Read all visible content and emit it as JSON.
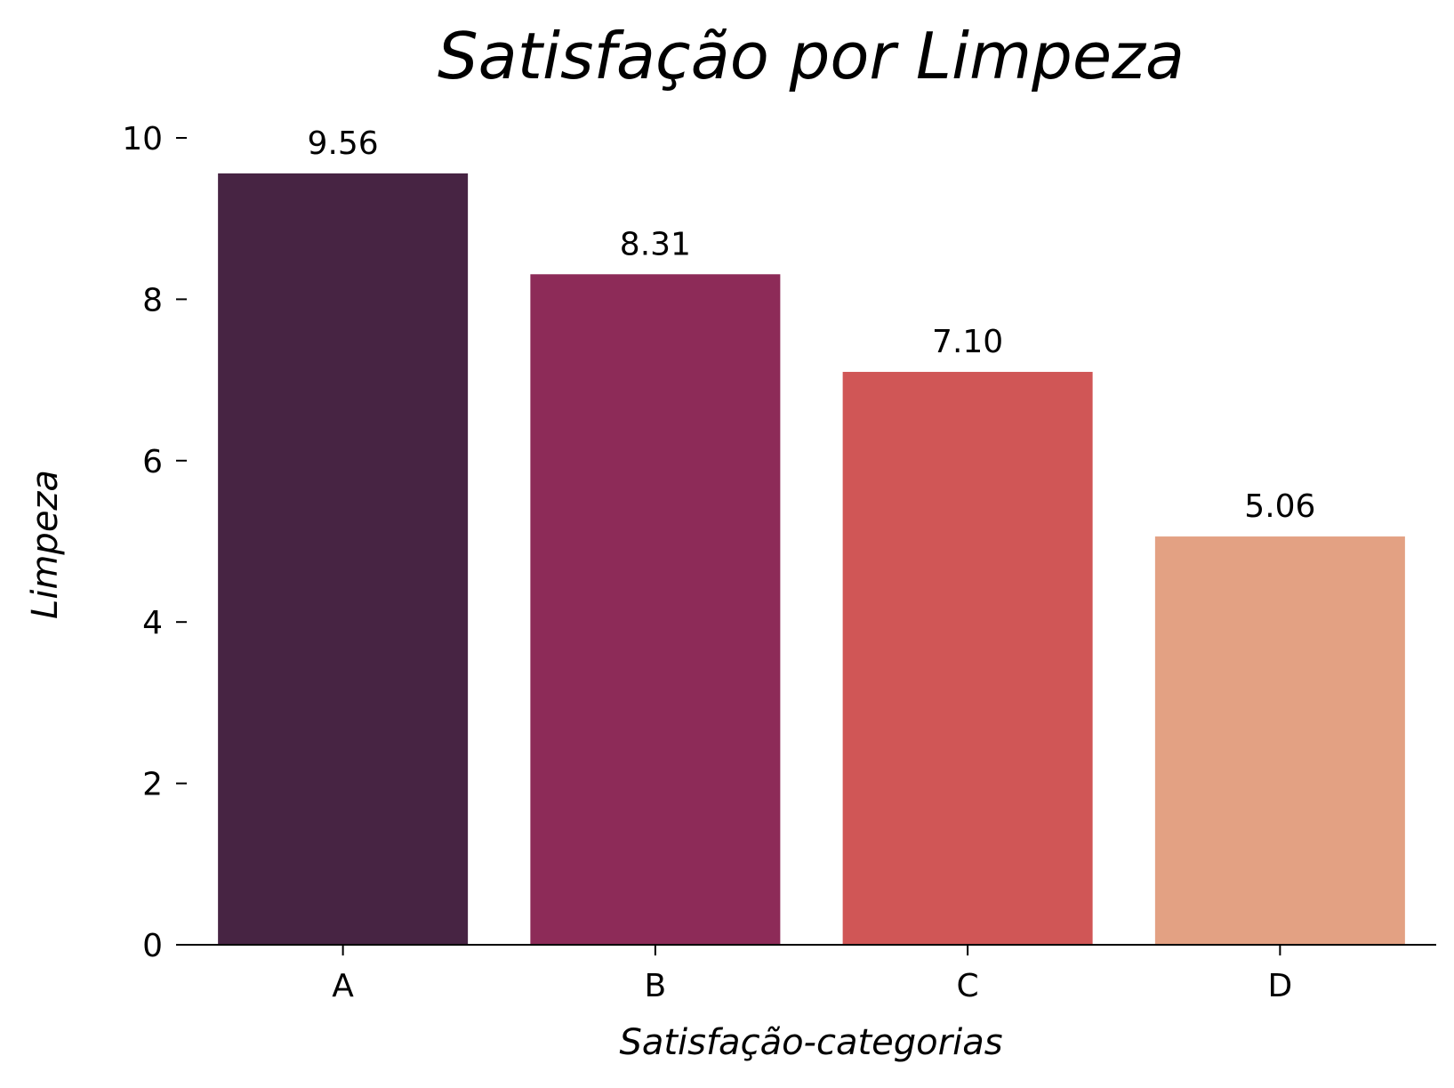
{
  "chart_data": {
    "type": "bar",
    "title": "Satisfação por Limpeza",
    "xlabel": "Satisfação-categorias",
    "ylabel": "Limpeza",
    "categories": [
      "A",
      "B",
      "C",
      "D"
    ],
    "values": [
      9.56,
      8.31,
      7.1,
      5.06
    ],
    "value_labels": [
      "9.56",
      "8.31",
      "7.10",
      "5.06"
    ],
    "colors": [
      "#472443",
      "#8d2b58",
      "#d05656",
      "#e3a183"
    ],
    "ylim": [
      0,
      10
    ],
    "yticks": [
      0,
      2,
      4,
      6,
      8,
      10
    ],
    "grid": false,
    "legend": "none"
  }
}
